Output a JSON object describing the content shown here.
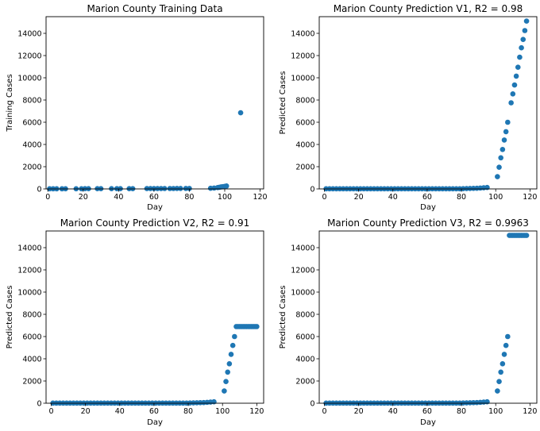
{
  "colors": {
    "marker": "#1f77b4",
    "frame": "#000000",
    "background": "#ffffff"
  },
  "chart_data": [
    {
      "type": "scatter",
      "title": "Marion County Training Data",
      "xlabel": "Day",
      "ylabel": "Training Cases",
      "xlim": [
        -1,
        122
      ],
      "ylim": [
        0,
        15500
      ],
      "xticks": [
        0,
        20,
        40,
        60,
        80,
        100,
        120
      ],
      "yticks": [
        0,
        2000,
        4000,
        6000,
        8000,
        10000,
        12000,
        14000
      ],
      "grid": false,
      "x": [
        1,
        3,
        5,
        8,
        10,
        16,
        19,
        21,
        23,
        28,
        30,
        36,
        39,
        41,
        46,
        48,
        56,
        58,
        60,
        62,
        64,
        66,
        69,
        71,
        73,
        75,
        78,
        80,
        92,
        94,
        96,
        97,
        98,
        99,
        100,
        101,
        109
      ],
      "y": [
        10,
        10,
        10,
        10,
        15,
        15,
        15,
        20,
        20,
        20,
        20,
        20,
        25,
        25,
        25,
        25,
        30,
        30,
        30,
        30,
        30,
        35,
        35,
        35,
        40,
        40,
        40,
        45,
        60,
        80,
        120,
        150,
        180,
        200,
        230,
        260,
        6850
      ]
    },
    {
      "type": "scatter",
      "title": "Marion County Prediction V1, R2 = 0.98",
      "xlabel": "Day",
      "ylabel": "Predicted Cases",
      "xlim": [
        -3,
        124
      ],
      "ylim": [
        0,
        15500
      ],
      "xticks": [
        0,
        20,
        40,
        60,
        80,
        100,
        120
      ],
      "yticks": [
        0,
        2000,
        4000,
        6000,
        8000,
        10000,
        12000,
        14000
      ],
      "grid": false,
      "x": [
        1,
        3,
        5,
        7,
        9,
        11,
        13,
        15,
        17,
        19,
        21,
        23,
        25,
        27,
        29,
        31,
        33,
        35,
        37,
        39,
        41,
        43,
        45,
        47,
        49,
        51,
        53,
        55,
        57,
        59,
        61,
        63,
        65,
        67,
        69,
        71,
        73,
        75,
        77,
        79,
        81,
        83,
        85,
        87,
        89,
        91,
        93,
        95,
        101,
        102,
        103,
        104,
        105,
        106,
        107,
        109,
        110,
        111,
        112,
        113,
        114,
        115,
        116,
        117,
        118
      ],
      "y": [
        10,
        10,
        10,
        10,
        10,
        10,
        10,
        10,
        10,
        10,
        10,
        10,
        10,
        10,
        10,
        10,
        10,
        10,
        10,
        10,
        10,
        10,
        10,
        10,
        10,
        10,
        10,
        10,
        10,
        10,
        10,
        10,
        10,
        10,
        10,
        10,
        10,
        10,
        10,
        10,
        20,
        30,
        40,
        50,
        60,
        80,
        100,
        130,
        1100,
        1950,
        2800,
        3550,
        4400,
        5150,
        6000,
        7750,
        8550,
        9350,
        10150,
        10950,
        11850,
        12700,
        13450,
        14250,
        15100
      ]
    },
    {
      "type": "scatter",
      "title": "Marion County Prediction V2, R2 = 0.91",
      "xlabel": "Day",
      "ylabel": "Predicted Cases",
      "xlim": [
        -3,
        124
      ],
      "ylim": [
        0,
        15500
      ],
      "xticks": [
        0,
        20,
        40,
        60,
        80,
        100,
        120
      ],
      "yticks": [
        0,
        2000,
        4000,
        6000,
        8000,
        10000,
        12000,
        14000
      ],
      "grid": false,
      "x": [
        1,
        3,
        5,
        7,
        9,
        11,
        13,
        15,
        17,
        19,
        21,
        23,
        25,
        27,
        29,
        31,
        33,
        35,
        37,
        39,
        41,
        43,
        45,
        47,
        49,
        51,
        53,
        55,
        57,
        59,
        61,
        63,
        65,
        67,
        69,
        71,
        73,
        75,
        77,
        79,
        81,
        83,
        85,
        87,
        89,
        91,
        93,
        95,
        101,
        102,
        103,
        104,
        105,
        106,
        107,
        108,
        109,
        110,
        111,
        112,
        113,
        114,
        115,
        116,
        117,
        118,
        119,
        120
      ],
      "y": [
        10,
        10,
        10,
        10,
        10,
        10,
        10,
        10,
        10,
        10,
        10,
        10,
        10,
        10,
        10,
        10,
        10,
        10,
        10,
        10,
        10,
        10,
        10,
        10,
        10,
        10,
        10,
        10,
        10,
        10,
        10,
        10,
        10,
        10,
        10,
        10,
        10,
        10,
        10,
        10,
        20,
        30,
        40,
        50,
        60,
        80,
        100,
        130,
        1100,
        1950,
        2800,
        3550,
        4400,
        5200,
        6000,
        6900,
        6900,
        6900,
        6900,
        6900,
        6900,
        6900,
        6900,
        6900,
        6900,
        6900,
        6900,
        6900
      ]
    },
    {
      "type": "scatter",
      "title": "Marion County Prediction V3, R2 = 0.9963",
      "xlabel": "Day",
      "ylabel": "Predicted Cases",
      "xlim": [
        -3,
        124
      ],
      "ylim": [
        0,
        15500
      ],
      "xticks": [
        0,
        20,
        40,
        60,
        80,
        100,
        120
      ],
      "yticks": [
        0,
        2000,
        4000,
        6000,
        8000,
        10000,
        12000,
        14000
      ],
      "grid": false,
      "x": [
        1,
        3,
        5,
        7,
        9,
        11,
        13,
        15,
        17,
        19,
        21,
        23,
        25,
        27,
        29,
        31,
        33,
        35,
        37,
        39,
        41,
        43,
        45,
        47,
        49,
        51,
        53,
        55,
        57,
        59,
        61,
        63,
        65,
        67,
        69,
        71,
        73,
        75,
        77,
        79,
        81,
        83,
        85,
        87,
        89,
        91,
        93,
        95,
        101,
        102,
        103,
        104,
        105,
        106,
        107,
        108,
        109,
        110,
        111,
        112,
        113,
        114,
        115,
        116,
        117,
        118
      ],
      "y": [
        10,
        10,
        10,
        10,
        10,
        10,
        10,
        10,
        10,
        10,
        10,
        10,
        10,
        10,
        10,
        10,
        10,
        10,
        10,
        10,
        10,
        10,
        10,
        10,
        10,
        10,
        10,
        10,
        10,
        10,
        10,
        10,
        10,
        10,
        10,
        10,
        10,
        10,
        10,
        10,
        20,
        30,
        40,
        50,
        60,
        80,
        100,
        130,
        1100,
        1950,
        2800,
        3550,
        4400,
        5200,
        6000,
        15100,
        15100,
        15100,
        15100,
        15100,
        15100,
        15100,
        15100,
        15100,
        15100,
        15100
      ]
    }
  ]
}
